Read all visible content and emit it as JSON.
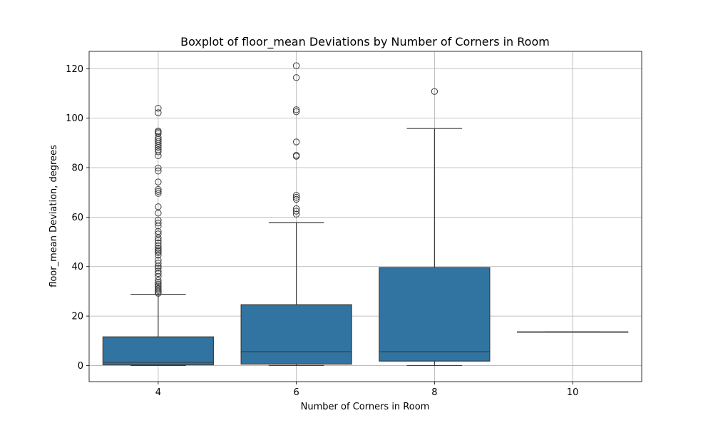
{
  "chart_data": {
    "type": "box",
    "title": "Boxplot of floor_mean Deviations by Number of Corners in Room",
    "xlabel": "Number of Corners in Room",
    "ylabel": "floor_mean Deviation, degrees",
    "categories": [
      "4",
      "6",
      "8",
      "10"
    ],
    "ylim": [
      -6.5,
      127
    ],
    "yticks": [
      0,
      20,
      40,
      60,
      80,
      100,
      120
    ],
    "grid": true,
    "box_color": "#3274a1",
    "line_color": "#3d3d3d",
    "boxes": [
      {
        "category": "4",
        "whisker_low": 0,
        "q1": 0.3,
        "median": 1.3,
        "q3": 11.6,
        "whisker_high": 28.8,
        "fliers": [
          29.2,
          29.8,
          30.4,
          31.0,
          31.6,
          32.2,
          32.9,
          33.6,
          34.4,
          36.0,
          37.2,
          38.2,
          39.4,
          40.2,
          41.4,
          42.6,
          44.6,
          45.6,
          46.2,
          46.8,
          47.4,
          48.4,
          49.6,
          50.6,
          51.6,
          53.2,
          54.2,
          56.4,
          57.6,
          58.8,
          61.6,
          64.2,
          69.6,
          70.4,
          71.2,
          74.2,
          78.6,
          79.8,
          84.8,
          86.4,
          87.2,
          88.2,
          89.0,
          89.8,
          90.6,
          91.4,
          92.2,
          93.8,
          94.4,
          94.8,
          102.2,
          104.0
        ]
      },
      {
        "category": "6",
        "whisker_low": 0,
        "q1": 0.6,
        "median": 5.6,
        "q3": 24.6,
        "whisker_high": 57.8,
        "fliers": [
          61.2,
          62.4,
          63.4,
          67.2,
          68.0,
          68.8,
          84.6,
          85.0,
          90.4,
          102.6,
          103.4,
          116.4,
          121.2
        ]
      },
      {
        "category": "8",
        "whisker_low": 0,
        "q1": 1.8,
        "median": 5.6,
        "q3": 39.6,
        "whisker_high": 95.8,
        "fliers": [
          110.8
        ]
      },
      {
        "category": "10",
        "whisker_low": 13.6,
        "q1": 13.6,
        "median": 13.6,
        "q3": 13.6,
        "whisker_high": 13.6,
        "fliers": []
      }
    ]
  }
}
